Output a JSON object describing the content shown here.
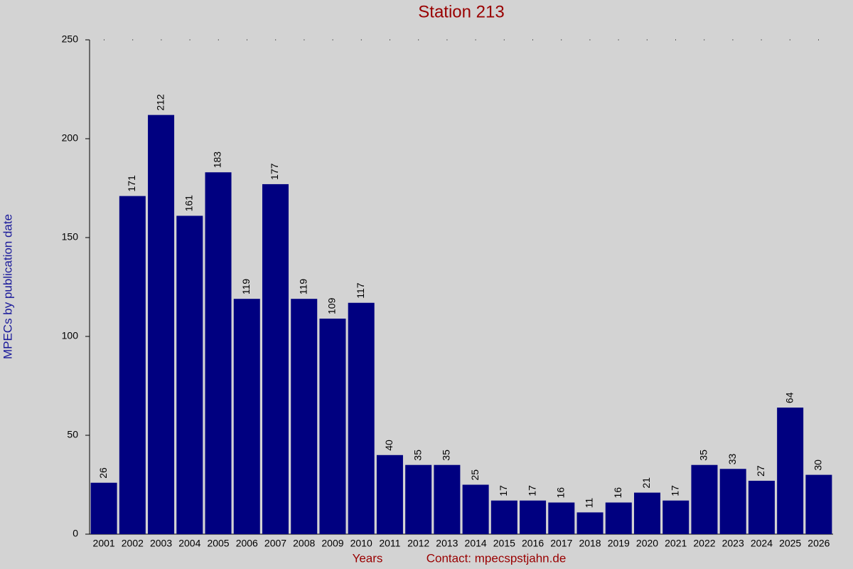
{
  "chart_data": {
    "type": "bar",
    "title": "Station 213",
    "x_label": "Years",
    "contact": "Contact: mpecspstjahn.de",
    "y_label": "MPECs by publication date",
    "categories": [
      "2001",
      "2002",
      "2003",
      "2004",
      "2005",
      "2006",
      "2007",
      "2008",
      "2009",
      "2010",
      "2011",
      "2012",
      "2013",
      "2014",
      "2015",
      "2016",
      "2017",
      "2018",
      "2019",
      "2020",
      "2021",
      "2022",
      "2023",
      "2024",
      "2025",
      "2026"
    ],
    "values": [
      26,
      171,
      212,
      161,
      183,
      119,
      177,
      119,
      109,
      117,
      40,
      35,
      35,
      25,
      17,
      17,
      16,
      11,
      16,
      21,
      17,
      35,
      33,
      27,
      64,
      30
    ],
    "color": "#000080",
    "ylim": [
      0,
      250
    ],
    "yticks": [
      0,
      50,
      100,
      150,
      200,
      250
    ]
  }
}
